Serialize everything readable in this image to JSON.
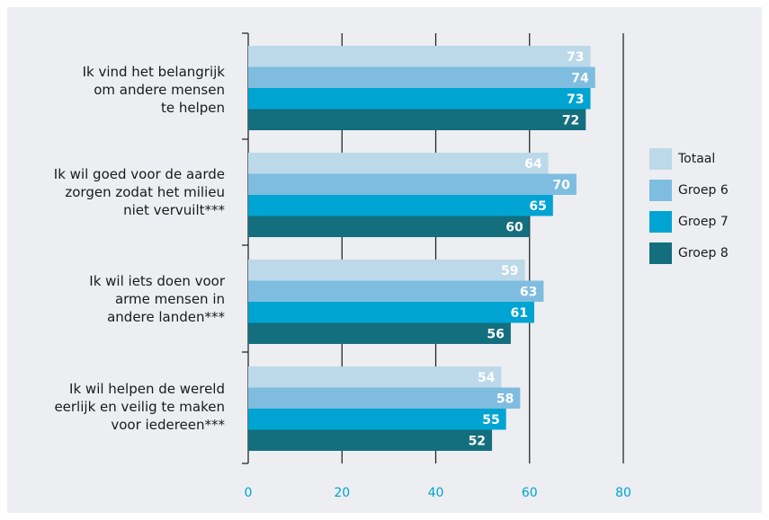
{
  "chart_data": {
    "type": "bar",
    "orientation": "horizontal",
    "categories": [
      "Ik vind het belangrijk\nom andere mensen\nte helpen",
      "Ik wil goed voor de aarde\nzorgen zodat het milieu\nniet vervuilt***",
      "Ik wil iets doen voor\narme mensen in\nandere landen***",
      "Ik wil helpen de wereld\neerlijk en veilig te maken\nvoor iedereen***"
    ],
    "series": [
      {
        "name": "Totaal",
        "color": "#bcd9ea",
        "values": [
          73,
          64,
          59,
          54
        ]
      },
      {
        "name": "Groep 6",
        "color": "#7ebddf",
        "values": [
          74,
          70,
          63,
          58
        ]
      },
      {
        "name": "Groep 7",
        "color": "#00a4d3",
        "values": [
          73,
          65,
          61,
          55
        ]
      },
      {
        "name": "Groep 8",
        "color": "#136e7e",
        "values": [
          72,
          60,
          56,
          52
        ]
      }
    ],
    "x_ticks": [
      "0",
      "20",
      "40",
      "60",
      "80"
    ],
    "xlim": [
      0,
      80
    ],
    "grid": true,
    "legend_position": "right",
    "tick_color": "#00a4d3"
  }
}
